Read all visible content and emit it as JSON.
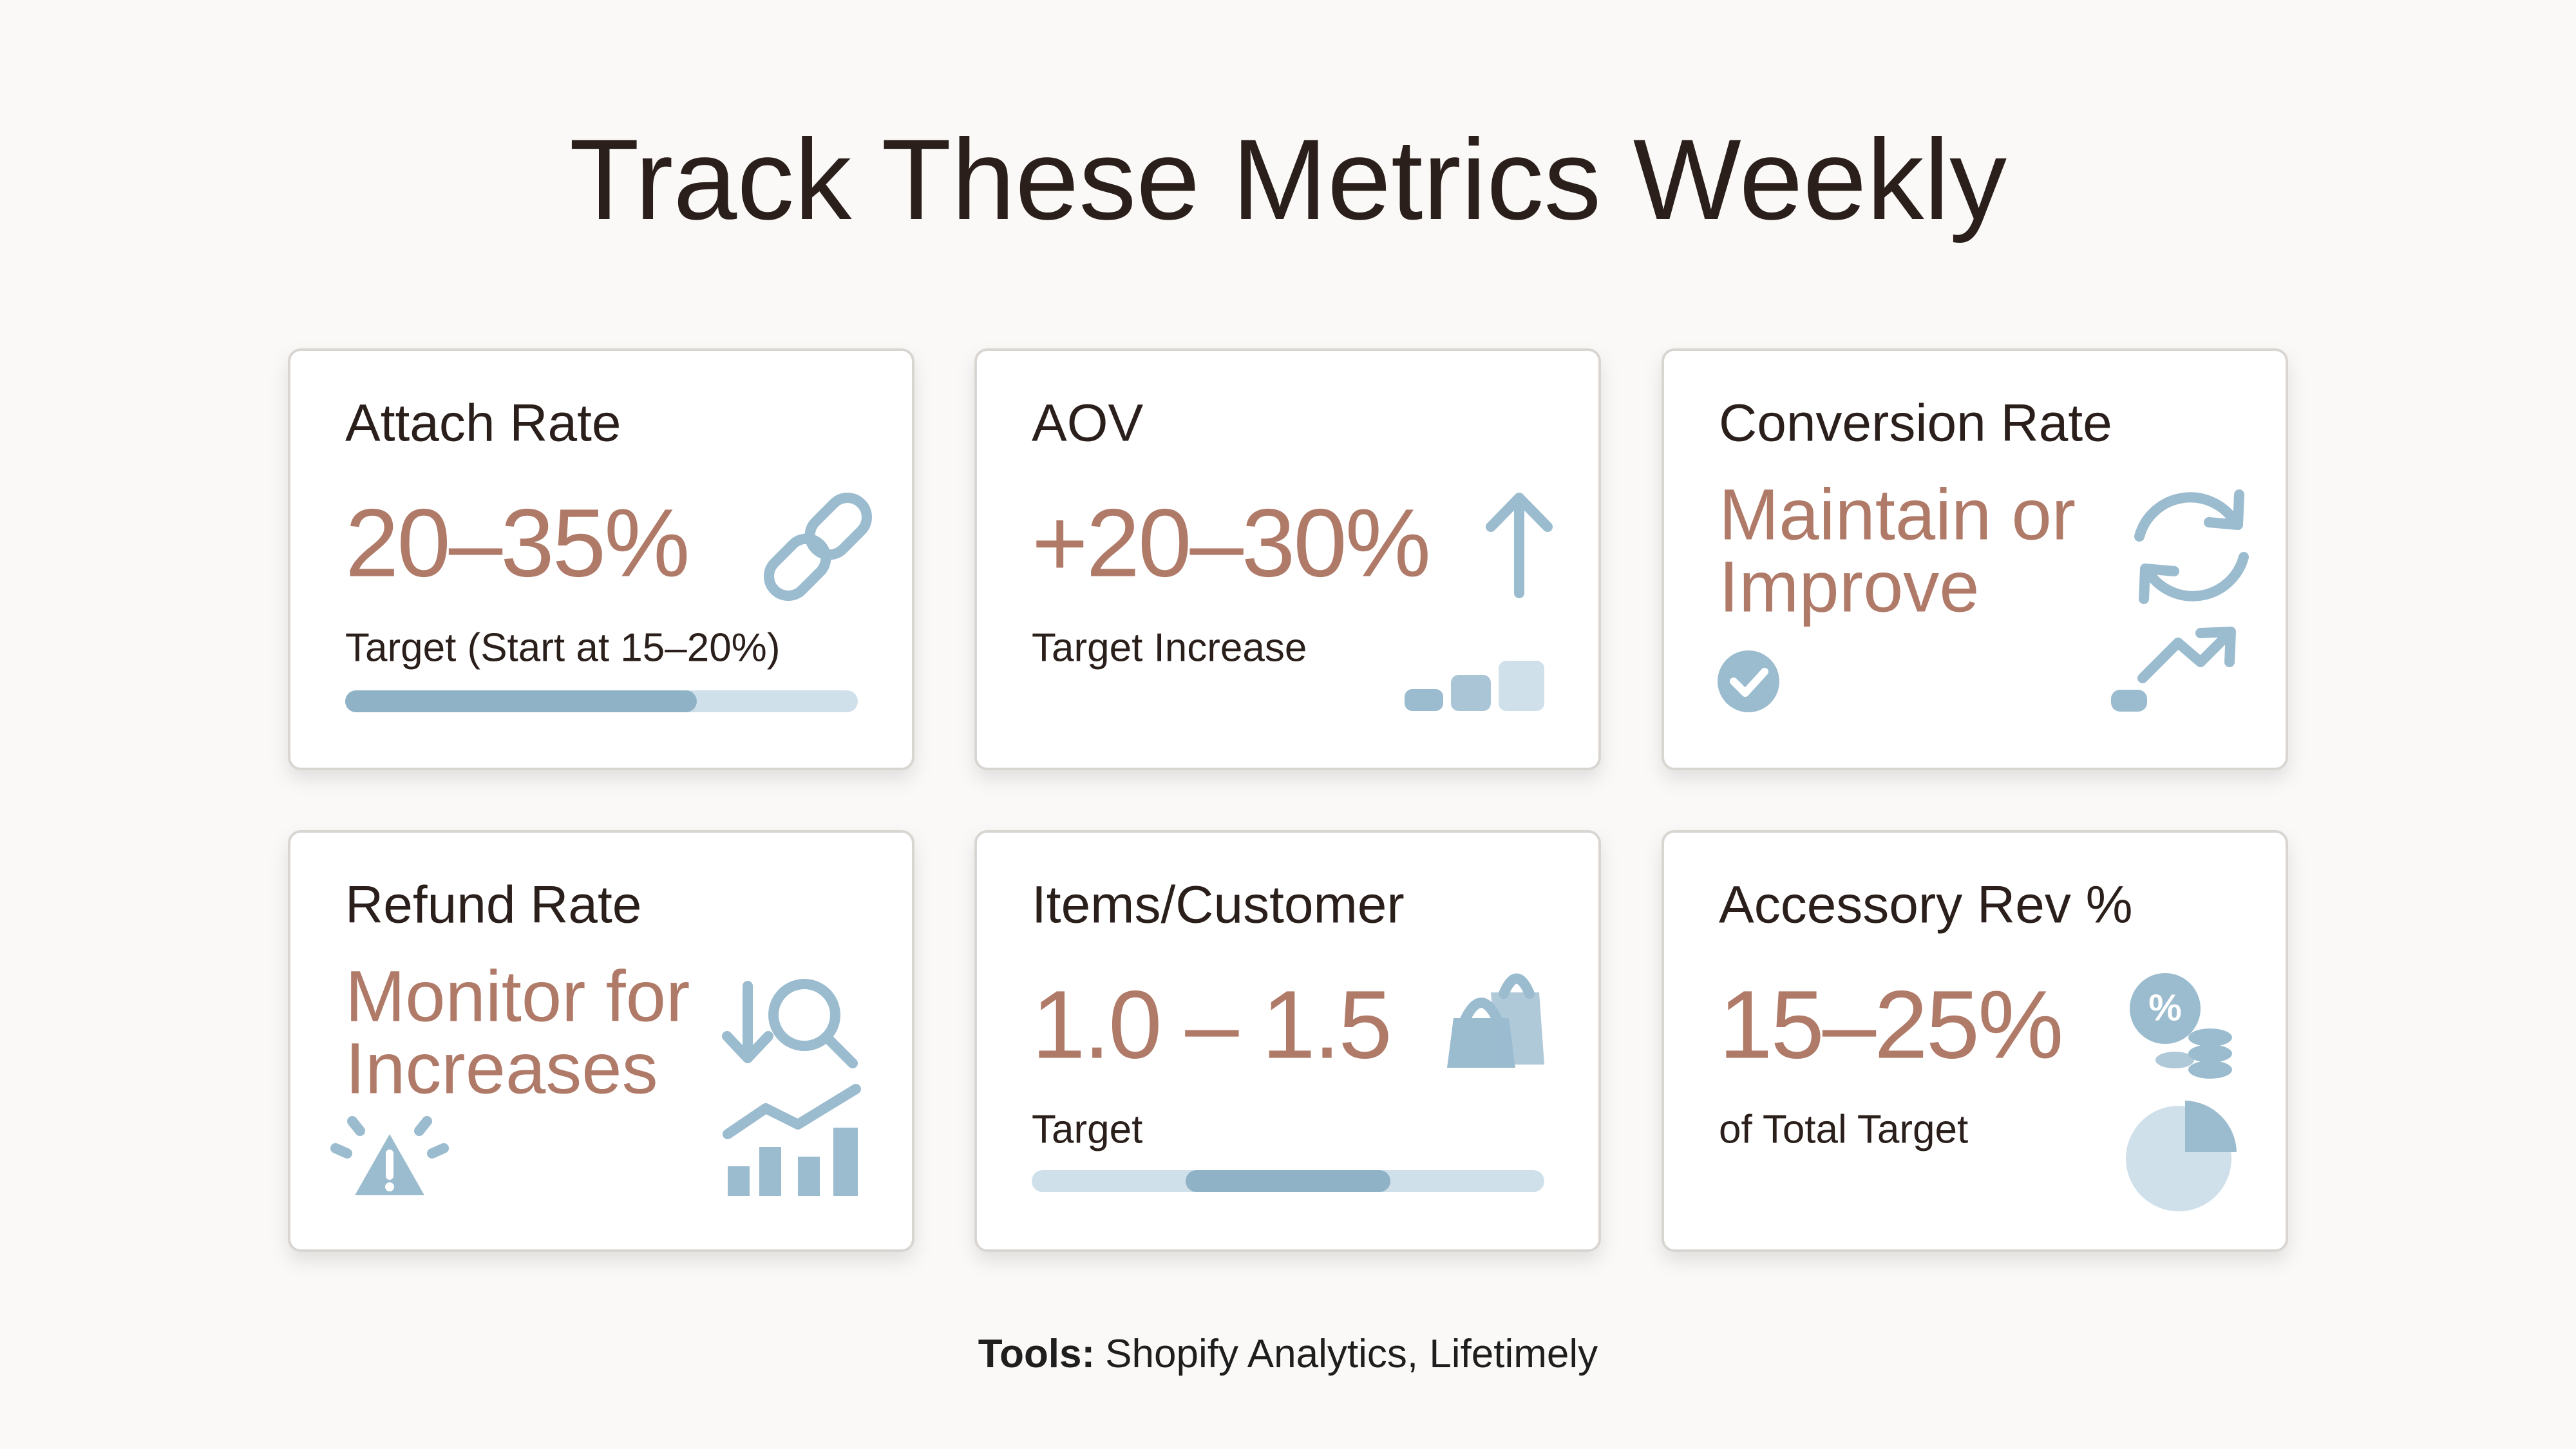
{
  "header": {
    "title": "Track These Metrics Weekly"
  },
  "cards": [
    {
      "label": "Attach Rate",
      "value": [
        "20–35%"
      ],
      "note": "Target (Start at 15–20%)"
    },
    {
      "label": "AOV",
      "value": [
        "+20–30%"
      ],
      "note": "Target Increase"
    },
    {
      "label": "Conversion Rate",
      "value": [
        "Maintain or",
        "Improve"
      ]
    },
    {
      "label": "Refund Rate",
      "value": [
        "Monitor for",
        "Increases"
      ]
    },
    {
      "label": "Items/Customer",
      "value": [
        "1.0 – 1.5"
      ],
      "note": "Target"
    },
    {
      "label": "Accessory Rev %",
      "value": [
        "15–25%"
      ],
      "note": "of Total Target"
    }
  ],
  "footer": {
    "label": "Tools:",
    "text": "Shopify Analytics, Lifetimely"
  }
}
